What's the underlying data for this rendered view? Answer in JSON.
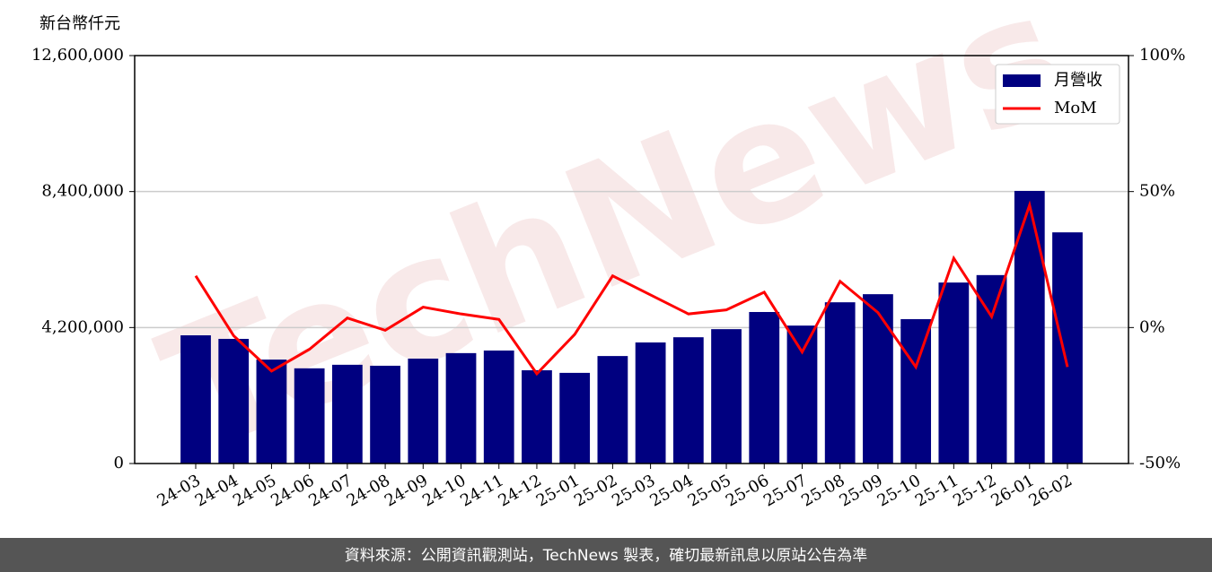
{
  "chart_data": {
    "type": "bar-line",
    "y_label": "新台幣仟元",
    "watermark": "TechNews",
    "footer": "資料來源：公開資訊觀測站，TechNews 製表，確切最新訊息以原站公告為準",
    "categories": [
      "24-03",
      "24-04",
      "24-05",
      "24-06",
      "24-07",
      "24-08",
      "24-09",
      "24-10",
      "24-11",
      "24-12",
      "25-01",
      "25-02",
      "25-03",
      "25-04",
      "25-05",
      "25-06",
      "25-07",
      "25-08",
      "25-09",
      "25-10",
      "25-11",
      "25-12",
      "26-01",
      "26-02"
    ],
    "series": [
      {
        "name": "月營收",
        "type": "bar",
        "color": "#000080",
        "values": [
          3960000,
          3850000,
          3210000,
          2940000,
          3050000,
          3020000,
          3240000,
          3410000,
          3490000,
          2880000,
          2800000,
          3320000,
          3740000,
          3900000,
          4150000,
          4680000,
          4260000,
          4980000,
          5230000,
          4460000,
          5590000,
          5820000,
          8420000,
          7140000
        ]
      },
      {
        "name": "MoM",
        "type": "line",
        "color": "#ff0000",
        "axis": "y2",
        "values": [
          19,
          -3,
          -16,
          -8,
          3.5,
          -1,
          7.5,
          5,
          3,
          -17,
          -2.5,
          19,
          12,
          5,
          6.5,
          13,
          -9,
          17,
          5.5,
          -14.5,
          25.5,
          4,
          45,
          -14.5
        ]
      }
    ],
    "ylim": [
      0,
      12600000
    ],
    "yticks": [
      0,
      {
        "value": 4200000,
        "label": "4,200,000"
      },
      {
        "value": 8400000,
        "label": "8,400,000"
      },
      {
        "value": 12600000,
        "label": "12,600,000"
      }
    ],
    "y2lim": [
      -50,
      100
    ],
    "y2ticks": [
      {
        "value": -50,
        "label": "-50%"
      },
      {
        "value": 0,
        "label": "0%"
      },
      {
        "value": 50,
        "label": "50%"
      },
      {
        "value": 100,
        "label": "100%"
      }
    ],
    "grid": true,
    "legend": "upper right"
  }
}
